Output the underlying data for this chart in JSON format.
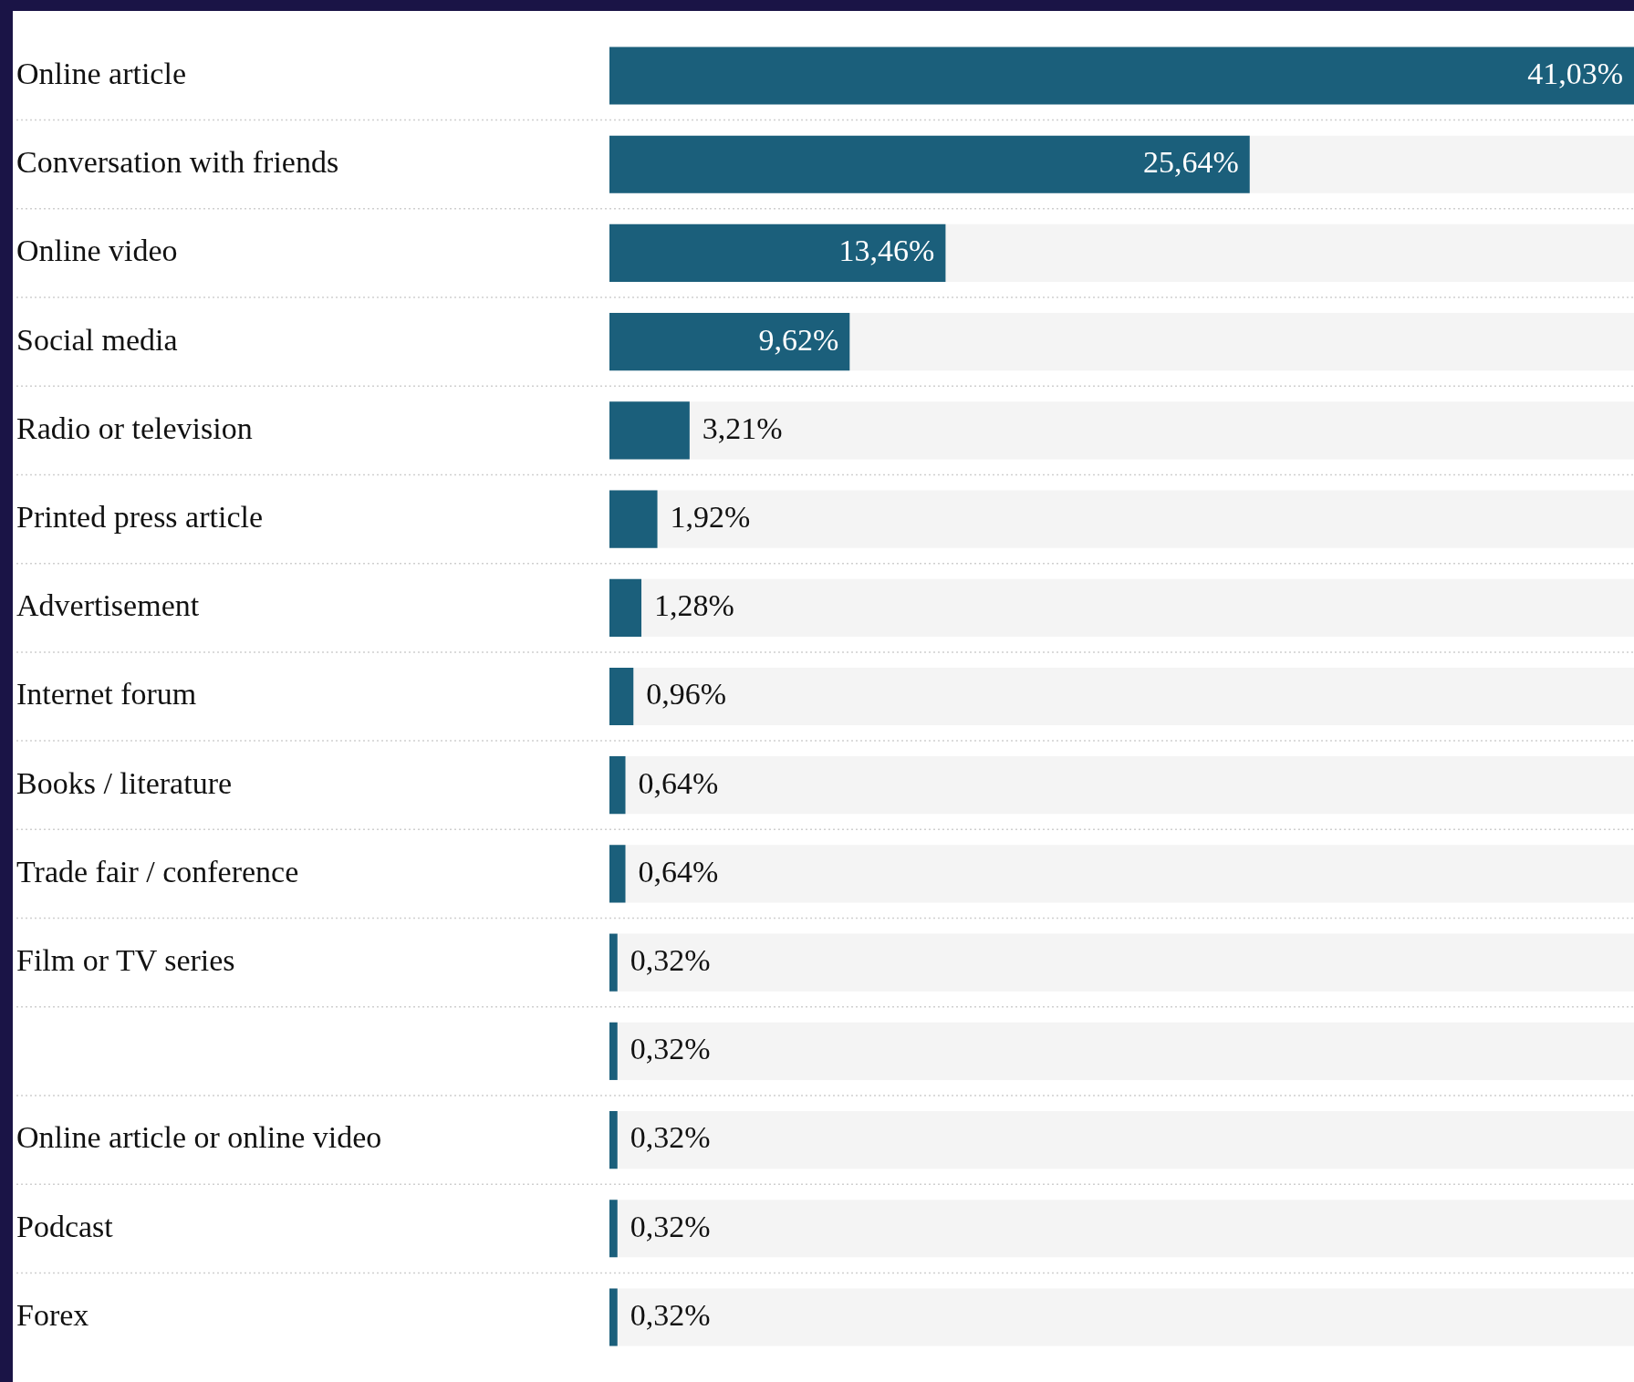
{
  "chart_data": {
    "type": "bar",
    "orientation": "horizontal",
    "categories": [
      "Online article",
      "Conversation with friends",
      "Online video",
      "Social media",
      "Radio or television",
      "Printed press article",
      "Advertisement",
      "Internet forum",
      "Books / literature",
      "Trade fair / conference",
      "Film or TV series",
      null,
      "Online article or online video",
      "Podcast",
      "Forex"
    ],
    "series": [
      {
        "color": "#1b5f7b",
        "values": [
          41.03,
          25.64,
          13.46,
          9.62,
          3.21,
          1.92,
          1.28,
          0.96,
          0.64,
          0.64,
          0.32,
          0.32,
          0.32,
          0.32,
          0.32
        ],
        "value_labels": [
          "41,03%",
          "25,64%",
          "13,46%",
          "9,62%",
          "3,21%",
          "1,92%",
          "1,28%",
          "0,96%",
          "0,64%",
          "0,64%",
          "0,32%",
          "0,32%",
          "0,32%",
          "0,32%",
          "0,32%"
        ]
      }
    ],
    "legend": false
  }
}
